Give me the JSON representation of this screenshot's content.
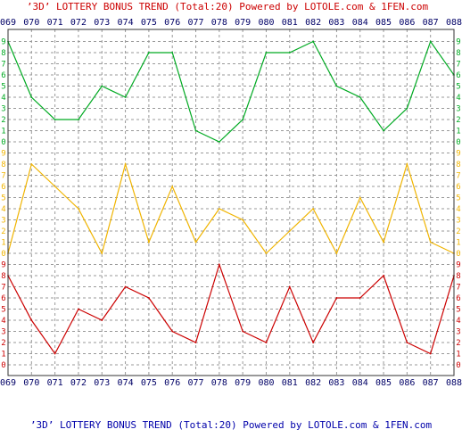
{
  "header": {
    "title_text": "’3D’ LOTTERY BONUS TREND (Total:20)",
    "powered_text": "Powered by LOTOLE.com & 1FEN.com",
    "top_color": "#cc0000",
    "bottom_color": "#0000aa"
  },
  "chart_data": {
    "type": "line",
    "title": "’3D’ LOTTERY BONUS TREND (Total:20)",
    "categories": [
      "069",
      "070",
      "071",
      "072",
      "073",
      "074",
      "075",
      "076",
      "077",
      "078",
      "079",
      "080",
      "081",
      "082",
      "083",
      "084",
      "085",
      "086",
      "087",
      "088"
    ],
    "panels": [
      {
        "color": "#00aa22",
        "ylim": [
          0,
          9
        ],
        "ticks": [
          "0",
          "1",
          "2",
          "3",
          "4",
          "5",
          "6",
          "7",
          "8",
          "9"
        ],
        "values": [
          9,
          4,
          2,
          2,
          5,
          4,
          8,
          8,
          1,
          0,
          2,
          8,
          8,
          9,
          5,
          4,
          1,
          3,
          9,
          6
        ]
      },
      {
        "color": "#f0b400",
        "ylim": [
          0,
          9
        ],
        "ticks": [
          "0",
          "1",
          "2",
          "3",
          "4",
          "5",
          "6",
          "7",
          "8",
          "9"
        ],
        "values": [
          0,
          8,
          6,
          4,
          0,
          8,
          1,
          6,
          1,
          4,
          3,
          0,
          2,
          4,
          0,
          5,
          1,
          8,
          1,
          0
        ]
      },
      {
        "color": "#cc0000",
        "ylim": [
          0,
          9
        ],
        "ticks": [
          "0",
          "1",
          "2",
          "3",
          "4",
          "5",
          "6",
          "7",
          "8",
          "9"
        ],
        "values": [
          8,
          4,
          1,
          5,
          4,
          7,
          6,
          3,
          2,
          9,
          3,
          2,
          7,
          2,
          6,
          6,
          8,
          2,
          1,
          8
        ]
      }
    ],
    "grid": true,
    "colors": {
      "x_label": "#000066",
      "grid_line": "#999999",
      "frame": "#333333"
    }
  }
}
